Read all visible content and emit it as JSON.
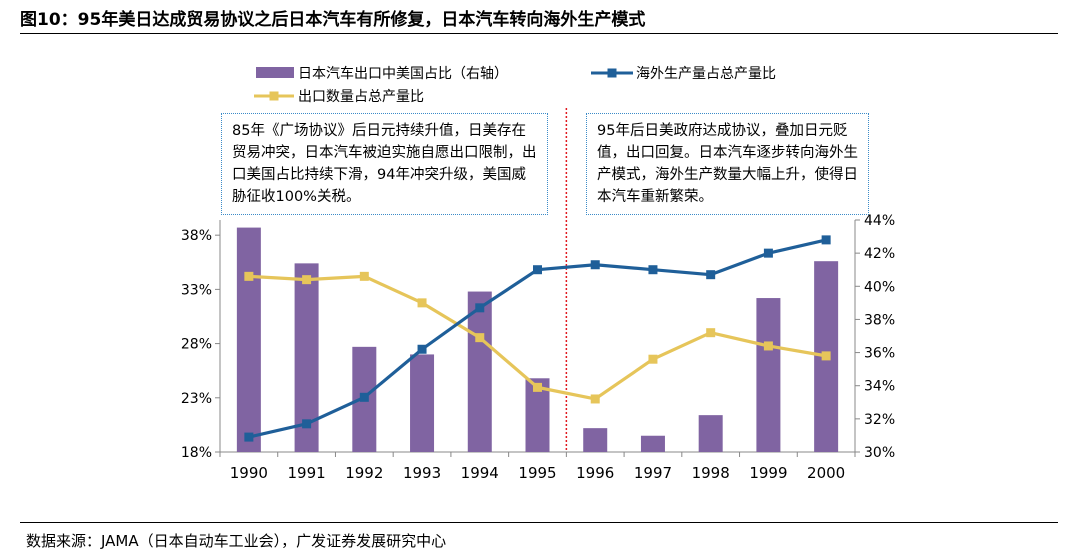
{
  "figure": {
    "title": "图10：95年美日达成贸易协议之后日本汽车有所修复，日本汽车转向海外生产模式",
    "source_label": "数据来源：",
    "source_text": "JAMA（日本自动车工业会），广发证券发展研究中心"
  },
  "annotations": {
    "left": "85年《广场协议》后日元持续升值，日美存在贸易冲突，日本汽车被迫实施自愿出口限制，出口美国占比持续下滑，94年冲突升级，美国威胁征收100%关税。",
    "right": "95年后日美政府达成协议，叠加日元贬值，出口回复。日本汽车逐步转向海外生产模式，海外生产数量大幅上升，使得日本汽车重新繁荣。"
  },
  "colors": {
    "bar": "#8064a2",
    "overseas_line": "#1f5f99",
    "export_line": "#e6c55a",
    "divider": "#e0191f",
    "axis": "#888888"
  },
  "chart_data": {
    "type": "bar",
    "categories": [
      "1990",
      "1991",
      "1992",
      "1993",
      "1994",
      "1995",
      "1996",
      "1997",
      "1998",
      "1999",
      "2000"
    ],
    "series": [
      {
        "name": "日本汽车出口中美国占比（右轴）",
        "type": "bar",
        "axis": "left",
        "values": [
          38.7,
          35.4,
          27.7,
          27.0,
          32.8,
          24.8,
          20.2,
          19.5,
          21.4,
          32.2,
          35.6
        ]
      },
      {
        "name": "海外生产量占总产量比",
        "type": "line",
        "axis": "right",
        "values": [
          30.9,
          31.7,
          33.3,
          36.2,
          38.7,
          41.0,
          41.3,
          41.0,
          40.7,
          42.0,
          42.8
        ]
      },
      {
        "name": "出口数量占总产量比",
        "type": "line",
        "axis": "right",
        "values": [
          40.6,
          40.4,
          40.6,
          39.0,
          36.9,
          33.9,
          33.2,
          35.6,
          37.2,
          36.4,
          35.8
        ]
      }
    ],
    "y_left": {
      "min": 18,
      "max": 39.4,
      "ticks": [
        18,
        23,
        28,
        33,
        38
      ],
      "tick_labels": [
        "18%",
        "23%",
        "28%",
        "33%",
        "38%"
      ]
    },
    "y_right": {
      "min": 30,
      "max": 44,
      "ticks": [
        30,
        32,
        34,
        36,
        38,
        40,
        42,
        44
      ],
      "tick_labels": [
        "30%",
        "32%",
        "34%",
        "36%",
        "38%",
        "40%",
        "42%",
        "44%"
      ]
    },
    "divider_between": [
      "1995",
      "1996"
    ],
    "legend_position": "top"
  }
}
